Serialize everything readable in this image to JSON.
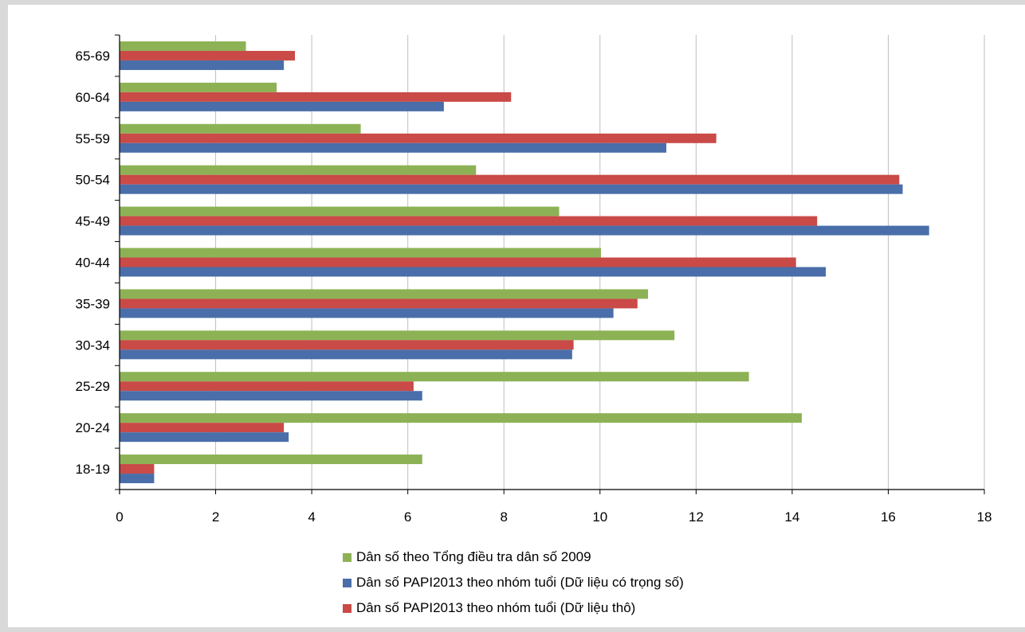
{
  "chart_data": {
    "type": "bar",
    "orientation": "horizontal",
    "categories": [
      "18-19",
      "20-24",
      "25-29",
      "30-34",
      "35-39",
      "40-44",
      "45-49",
      "50-54",
      "55-59",
      "60-64",
      "65-69"
    ],
    "series": [
      {
        "name": "Dân số theo Tổng điều tra dân số 2009",
        "color": "#8db255",
        "values": [
          6.3,
          14.2,
          13.1,
          11.55,
          11.0,
          10.02,
          9.15,
          7.42,
          5.02,
          3.27,
          2.63
        ]
      },
      {
        "name": "Dân số PAPI2013 theo nhóm tuổi (Dữ liệu thô)",
        "color": "#c94a47",
        "values": [
          0.72,
          3.42,
          6.12,
          9.45,
          10.78,
          14.08,
          14.52,
          16.23,
          12.42,
          8.15,
          3.65
        ]
      },
      {
        "name": "Dân số PAPI2013 theo nhóm tuổi (Dữ liệu có trọng số)",
        "color": "#4a6ea9",
        "values": [
          0.72,
          3.52,
          6.3,
          9.42,
          10.28,
          14.7,
          16.85,
          16.3,
          11.38,
          6.75,
          3.42
        ]
      }
    ],
    "xlim": [
      0,
      18
    ],
    "xticks": [
      0,
      2,
      4,
      6,
      8,
      10,
      12,
      14,
      16,
      18
    ],
    "grid": "vertical",
    "legend": "bottom-center",
    "legend_order": [
      0,
      2,
      1
    ]
  }
}
